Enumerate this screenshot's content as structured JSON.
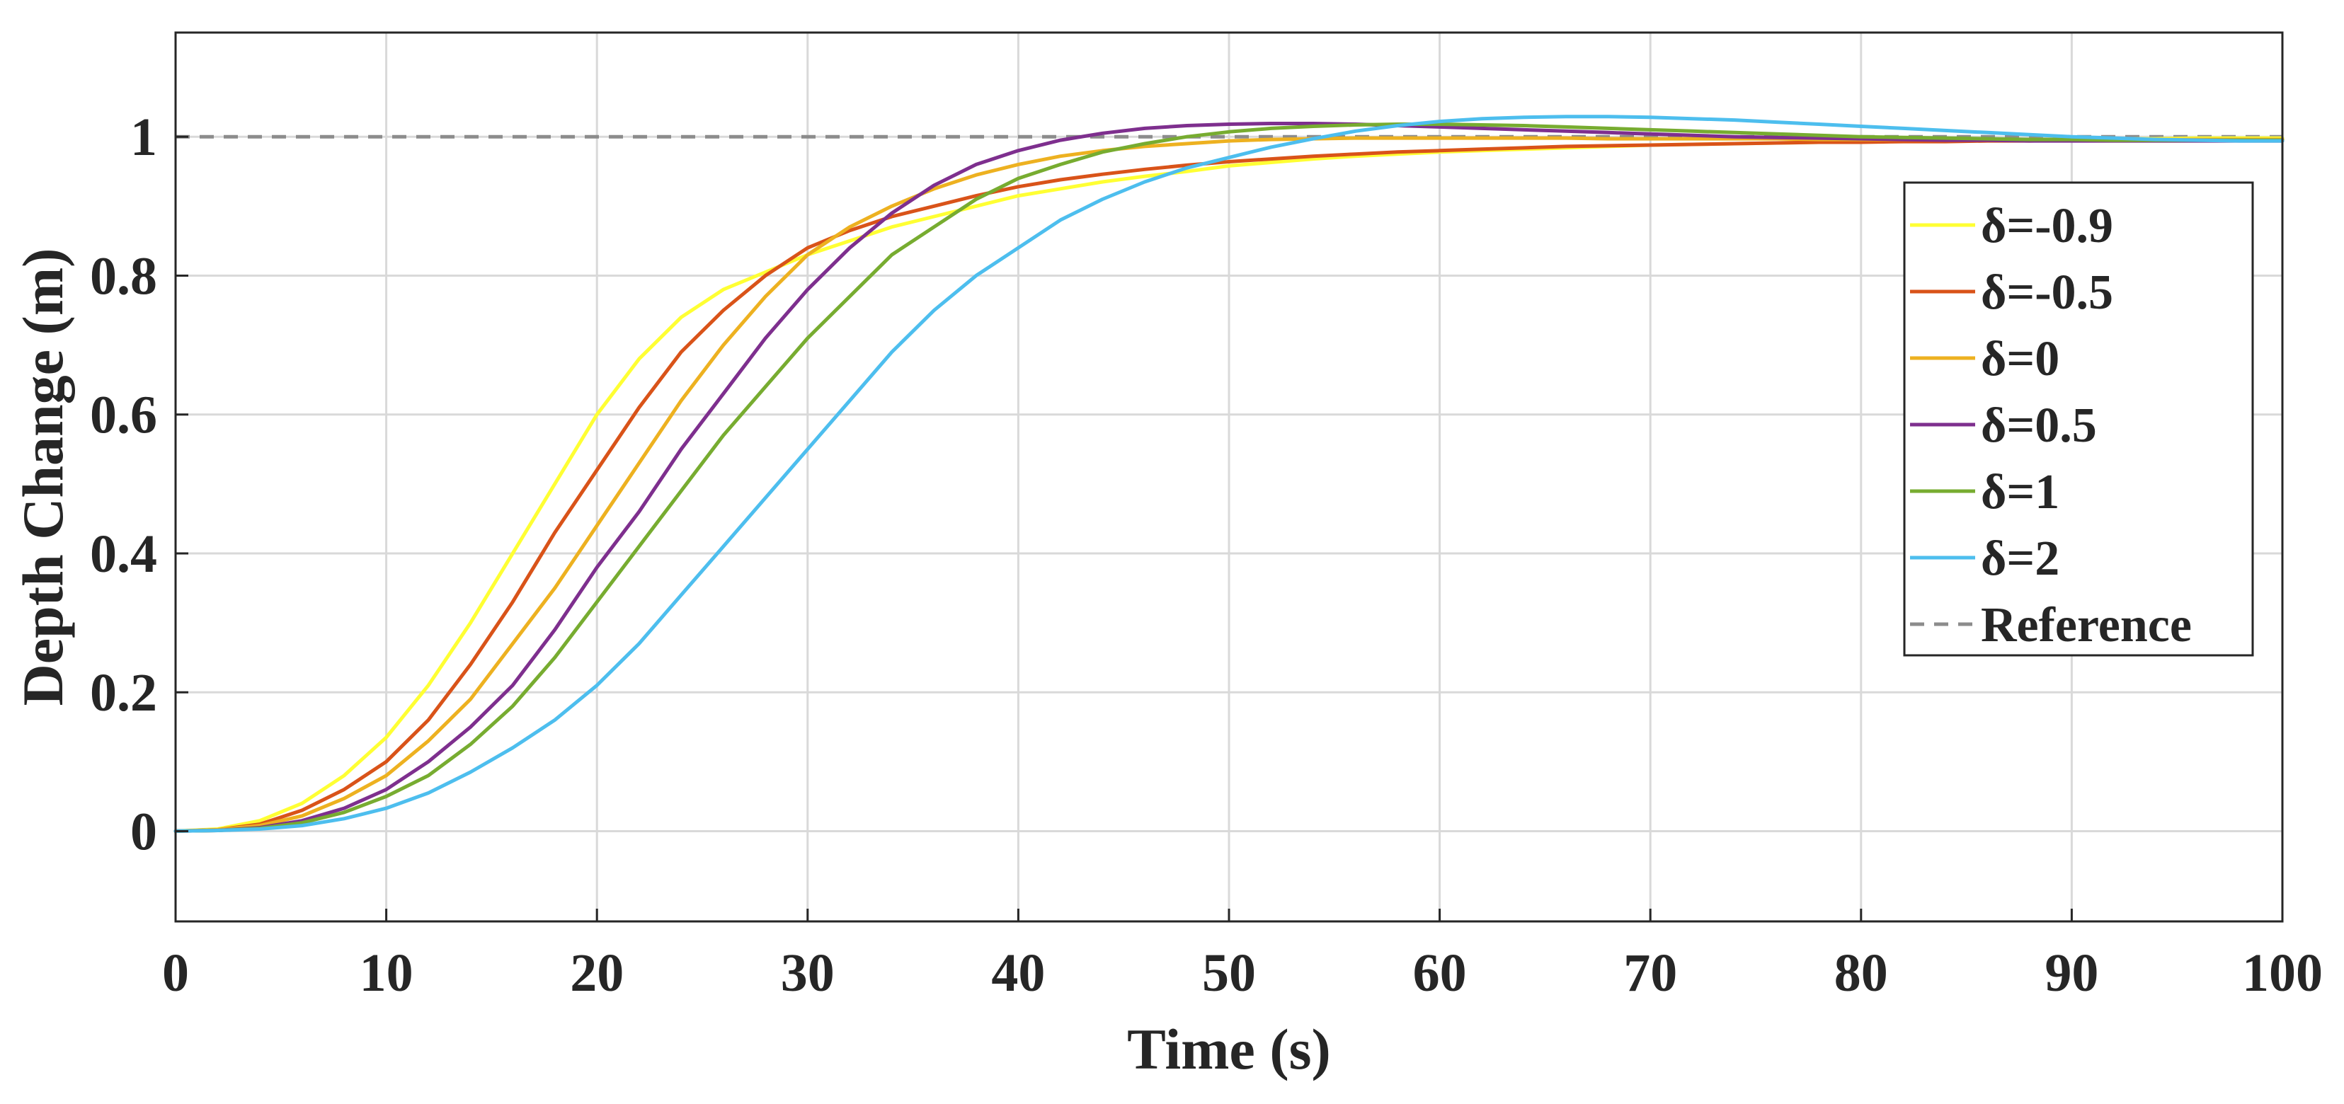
{
  "chart_data": {
    "type": "line",
    "title": "",
    "xlabel": "Time (s)",
    "ylabel": "Depth Change (m)",
    "xlim": [
      0,
      100
    ],
    "ylim": [
      -0.13,
      1.15
    ],
    "xticks": [
      0,
      10,
      20,
      30,
      40,
      50,
      60,
      70,
      80,
      90,
      100
    ],
    "xtick_labels": [
      "0",
      "10",
      "20",
      "30",
      "40",
      "50",
      "60",
      "70",
      "80",
      "90",
      "100"
    ],
    "yticks": [
      0,
      0.2,
      0.4,
      0.6,
      0.8,
      1
    ],
    "ytick_labels": [
      "0",
      "0.2",
      "0.4",
      "0.6",
      "0.8",
      "1"
    ],
    "grid": true,
    "legend_position": "right",
    "x": [
      0,
      2,
      4,
      6,
      8,
      10,
      12,
      14,
      16,
      18,
      20,
      22,
      24,
      26,
      28,
      30,
      32,
      34,
      36,
      38,
      40,
      42,
      44,
      46,
      48,
      50,
      52,
      54,
      56,
      58,
      60,
      62,
      64,
      66,
      68,
      70,
      72,
      74,
      76,
      78,
      80,
      82,
      84,
      86,
      88,
      90,
      92,
      94,
      96,
      98,
      100
    ],
    "series": [
      {
        "name": "δ=-0.9",
        "color": "#FFFF33",
        "values": [
          0,
          0.003,
          0.015,
          0.04,
          0.08,
          0.135,
          0.21,
          0.3,
          0.4,
          0.5,
          0.6,
          0.68,
          0.74,
          0.78,
          0.805,
          0.83,
          0.85,
          0.87,
          0.885,
          0.9,
          0.915,
          0.925,
          0.935,
          0.943,
          0.95,
          0.958,
          0.963,
          0.968,
          0.972,
          0.975,
          0.978,
          0.98,
          0.982,
          0.984,
          0.986,
          0.988,
          0.989,
          0.99,
          0.991,
          0.992,
          0.993,
          0.994,
          0.995,
          0.995,
          0.996,
          0.996,
          0.997,
          0.997,
          0.998,
          0.998,
          0.998
        ]
      },
      {
        "name": "δ=-0.5",
        "color": "#D95319",
        "values": [
          0,
          0.002,
          0.01,
          0.03,
          0.06,
          0.1,
          0.16,
          0.24,
          0.33,
          0.43,
          0.52,
          0.61,
          0.69,
          0.75,
          0.8,
          0.84,
          0.865,
          0.885,
          0.9,
          0.915,
          0.928,
          0.938,
          0.946,
          0.953,
          0.959,
          0.964,
          0.968,
          0.972,
          0.975,
          0.978,
          0.98,
          0.982,
          0.984,
          0.986,
          0.987,
          0.988,
          0.989,
          0.99,
          0.991,
          0.992,
          0.992,
          0.993,
          0.993,
          0.994,
          0.994,
          0.995,
          0.995,
          0.995,
          0.996,
          0.996,
          0.996
        ]
      },
      {
        "name": "δ=0",
        "color": "#EDB120",
        "values": [
          0,
          0.002,
          0.008,
          0.022,
          0.047,
          0.08,
          0.13,
          0.19,
          0.27,
          0.35,
          0.44,
          0.53,
          0.62,
          0.7,
          0.77,
          0.83,
          0.87,
          0.9,
          0.925,
          0.945,
          0.96,
          0.972,
          0.98,
          0.986,
          0.99,
          0.994,
          0.996,
          0.997,
          0.998,
          0.998,
          0.998,
          0.998,
          0.998,
          0.998,
          0.997,
          0.997,
          0.997,
          0.997,
          0.997,
          0.996,
          0.996,
          0.996,
          0.996,
          0.996,
          0.996,
          0.996,
          0.996,
          0.996,
          0.996,
          0.996,
          0.996
        ]
      },
      {
        "name": "δ=0.5",
        "color": "#7E2F8E",
        "values": [
          0,
          0.001,
          0.005,
          0.015,
          0.033,
          0.06,
          0.1,
          0.15,
          0.21,
          0.29,
          0.38,
          0.46,
          0.55,
          0.63,
          0.71,
          0.78,
          0.84,
          0.89,
          0.93,
          0.96,
          0.98,
          0.995,
          1.005,
          1.012,
          1.016,
          1.018,
          1.019,
          1.019,
          1.018,
          1.016,
          1.014,
          1.012,
          1.01,
          1.008,
          1.006,
          1.004,
          1.002,
          1.0,
          0.999,
          0.998,
          0.997,
          0.996,
          0.995,
          0.995,
          0.994,
          0.994,
          0.994,
          0.994,
          0.994,
          0.994,
          0.994
        ]
      },
      {
        "name": "δ=1",
        "color": "#77AC30",
        "values": [
          0,
          0.001,
          0.004,
          0.012,
          0.027,
          0.05,
          0.08,
          0.125,
          0.18,
          0.25,
          0.33,
          0.41,
          0.49,
          0.57,
          0.64,
          0.71,
          0.77,
          0.83,
          0.87,
          0.91,
          0.94,
          0.96,
          0.978,
          0.99,
          1.0,
          1.007,
          1.012,
          1.015,
          1.017,
          1.018,
          1.018,
          1.017,
          1.016,
          1.014,
          1.012,
          1.01,
          1.008,
          1.006,
          1.004,
          1.002,
          1.0,
          0.999,
          0.998,
          0.997,
          0.996,
          0.996,
          0.995,
          0.995,
          0.995,
          0.995,
          0.995
        ]
      },
      {
        "name": "δ=2",
        "color": "#4DBEEE",
        "values": [
          0,
          0.001,
          0.003,
          0.008,
          0.018,
          0.033,
          0.055,
          0.085,
          0.12,
          0.16,
          0.21,
          0.27,
          0.34,
          0.41,
          0.48,
          0.55,
          0.62,
          0.69,
          0.75,
          0.8,
          0.84,
          0.88,
          0.91,
          0.935,
          0.955,
          0.97,
          0.985,
          0.997,
          1.008,
          1.016,
          1.022,
          1.026,
          1.028,
          1.029,
          1.029,
          1.028,
          1.026,
          1.024,
          1.021,
          1.018,
          1.015,
          1.012,
          1.009,
          1.006,
          1.003,
          1.0,
          0.998,
          0.996,
          0.995,
          0.994,
          0.994
        ]
      },
      {
        "name": "Reference",
        "color": "#8C8C8C",
        "style": "dashed",
        "values": [
          1,
          1,
          1,
          1,
          1,
          1,
          1,
          1,
          1,
          1,
          1,
          1,
          1,
          1,
          1,
          1,
          1,
          1,
          1,
          1,
          1,
          1,
          1,
          1,
          1,
          1,
          1,
          1,
          1,
          1,
          1,
          1,
          1,
          1,
          1,
          1,
          1,
          1,
          1,
          1,
          1,
          1,
          1,
          1,
          1,
          1,
          1,
          1,
          1,
          1,
          1
        ]
      }
    ]
  }
}
